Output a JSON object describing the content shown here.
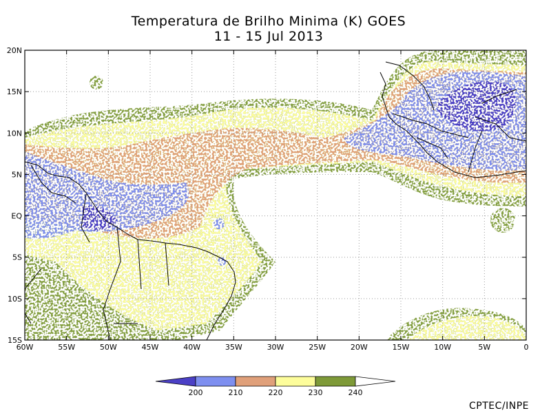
{
  "title_line1": "Temperatura de Brilho Minima (K) GOES",
  "title_line2": "11 - 15 Jul 2013",
  "map": {
    "lon_range": [
      -60,
      0
    ],
    "lat_range": [
      -15,
      20
    ],
    "lon_ticks": [
      {
        "value": -60,
        "label": "60W"
      },
      {
        "value": -55,
        "label": "55W"
      },
      {
        "value": -50,
        "label": "50W"
      },
      {
        "value": -45,
        "label": "45W"
      },
      {
        "value": -40,
        "label": "40W"
      },
      {
        "value": -35,
        "label": "35W"
      },
      {
        "value": -30,
        "label": "30W"
      },
      {
        "value": -25,
        "label": "25W"
      },
      {
        "value": -20,
        "label": "20W"
      },
      {
        "value": -15,
        "label": "15W"
      },
      {
        "value": -10,
        "label": "10W"
      },
      {
        "value": -5,
        "label": "5W"
      },
      {
        "value": 0,
        "label": "0"
      }
    ],
    "lat_ticks": [
      {
        "value": 20,
        "label": "20N"
      },
      {
        "value": 15,
        "label": "15N"
      },
      {
        "value": 10,
        "label": "10N"
      },
      {
        "value": 5,
        "label": "5N"
      },
      {
        "value": 0,
        "label": "EQ"
      },
      {
        "value": -5,
        "label": "5S"
      },
      {
        "value": -10,
        "label": "10S"
      },
      {
        "value": -15,
        "label": "15S"
      }
    ]
  },
  "legend": {
    "colors": [
      "#4b40c6",
      "#7e8ff0",
      "#e0a07a",
      "#fdfd9b",
      "#7e9a38",
      "#ffffff"
    ],
    "labels": [
      "200",
      "210",
      "220",
      "230",
      "240"
    ]
  },
  "credit": "CPTEC/INPE"
}
